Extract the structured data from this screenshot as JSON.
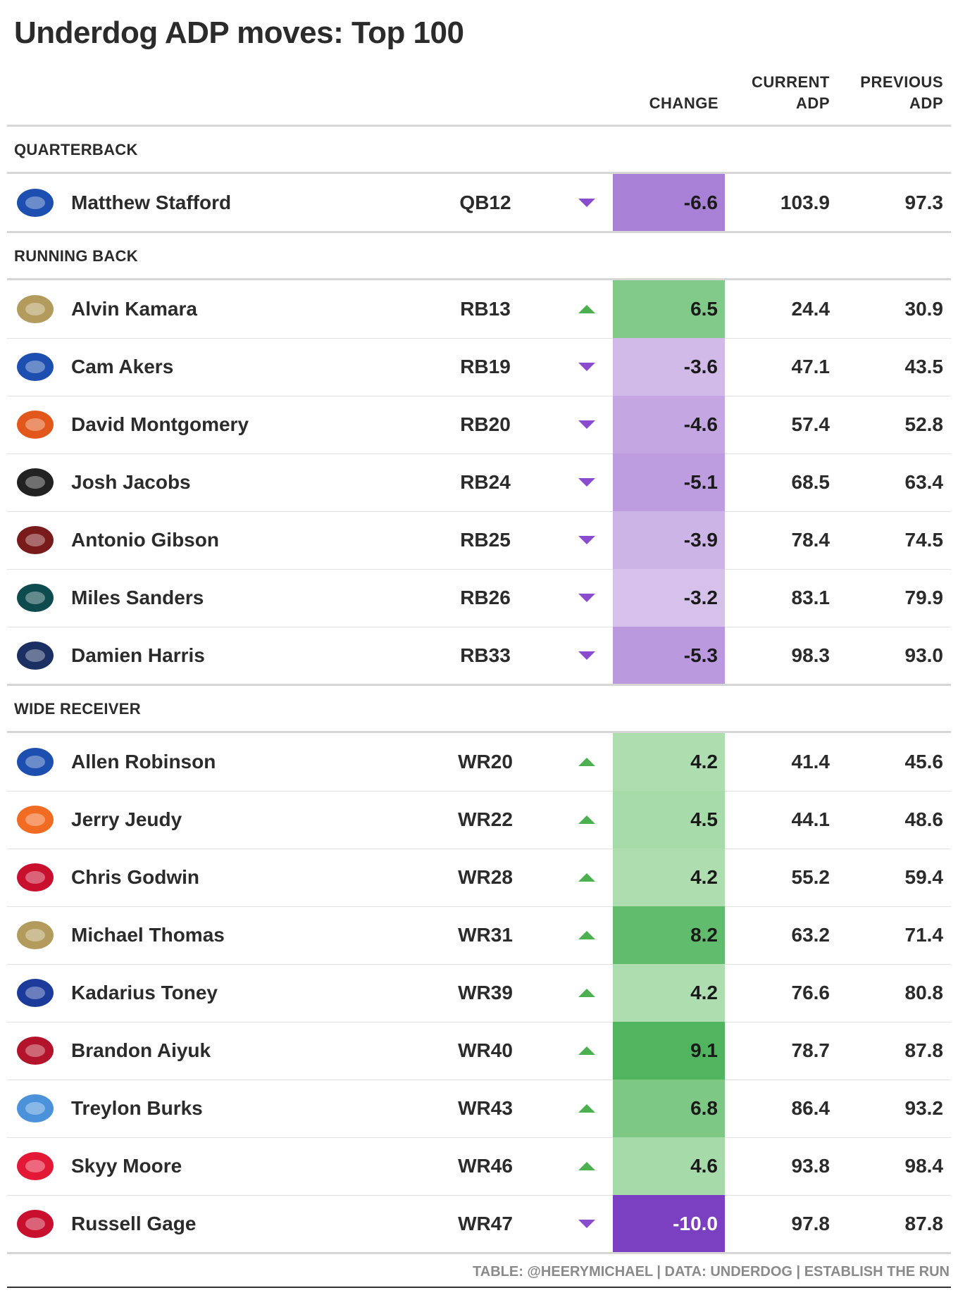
{
  "header": {
    "title": "Underdog ADP moves: Top 100",
    "columns": [
      "CHANGE",
      "CURRENT ADP",
      "PREVIOUS ADP"
    ]
  },
  "table": {
    "groups": [
      {
        "name": "QUARTERBACK",
        "rows": [
          {
            "player": "Matthew Stafford",
            "pos": "QB12",
            "change": "-6.6",
            "current": "103.9",
            "previous": "97.3",
            "logo_color": "#1d4fb0"
          }
        ]
      },
      {
        "name": "RUNNING BACK",
        "rows": [
          {
            "player": "Alvin Kamara",
            "pos": "RB13",
            "change": "6.5",
            "current": "24.4",
            "previous": "30.9",
            "logo_color": "#b39b5e"
          },
          {
            "player": "Cam Akers",
            "pos": "RB19",
            "change": "-3.6",
            "current": "47.1",
            "previous": "43.5",
            "logo_color": "#1d4fb0"
          },
          {
            "player": "David Montgomery",
            "pos": "RB20",
            "change": "-4.6",
            "current": "57.4",
            "previous": "52.8",
            "logo_color": "#e2581c"
          },
          {
            "player": "Josh Jacobs",
            "pos": "RB24",
            "change": "-5.1",
            "current": "68.5",
            "previous": "63.4",
            "logo_color": "#222222"
          },
          {
            "player": "Antonio Gibson",
            "pos": "RB25",
            "change": "-3.9",
            "current": "78.4",
            "previous": "74.5",
            "logo_color": "#7a1b1b"
          },
          {
            "player": "Miles Sanders",
            "pos": "RB26",
            "change": "-3.2",
            "current": "83.1",
            "previous": "79.9",
            "logo_color": "#0e4b4f"
          },
          {
            "player": "Damien Harris",
            "pos": "RB33",
            "change": "-5.3",
            "current": "98.3",
            "previous": "93.0",
            "logo_color": "#1c2f63"
          }
        ]
      },
      {
        "name": "WIDE RECEIVER",
        "rows": [
          {
            "player": "Allen Robinson",
            "pos": "WR20",
            "change": "4.2",
            "current": "41.4",
            "previous": "45.6",
            "logo_color": "#1d4fb0"
          },
          {
            "player": "Jerry Jeudy",
            "pos": "WR22",
            "change": "4.5",
            "current": "44.1",
            "previous": "48.6",
            "logo_color": "#f26b22"
          },
          {
            "player": "Chris Godwin",
            "pos": "WR28",
            "change": "4.2",
            "current": "55.2",
            "previous": "59.4",
            "logo_color": "#c8102e"
          },
          {
            "player": "Michael Thomas",
            "pos": "WR31",
            "change": "8.2",
            "current": "63.2",
            "previous": "71.4",
            "logo_color": "#b39b5e"
          },
          {
            "player": "Kadarius Toney",
            "pos": "WR39",
            "change": "4.2",
            "current": "76.6",
            "previous": "80.8",
            "logo_color": "#1b3a9a"
          },
          {
            "player": "Brandon Aiyuk",
            "pos": "WR40",
            "change": "9.1",
            "current": "78.7",
            "previous": "87.8",
            "logo_color": "#b3142b"
          },
          {
            "player": "Treylon Burks",
            "pos": "WR43",
            "change": "6.8",
            "current": "86.4",
            "previous": "93.2",
            "logo_color": "#4b92db"
          },
          {
            "player": "Skyy Moore",
            "pos": "WR46",
            "change": "4.6",
            "current": "93.8",
            "previous": "98.4",
            "logo_color": "#e31837"
          },
          {
            "player": "Russell Gage",
            "pos": "WR47",
            "change": "-10.0",
            "current": "97.8",
            "previous": "87.8",
            "logo_color": "#c8102e"
          }
        ]
      }
    ]
  },
  "footer": "TABLE: @HEERYMICHAEL | DATA: UNDERDOG | ESTABLISH THE RUN"
}
